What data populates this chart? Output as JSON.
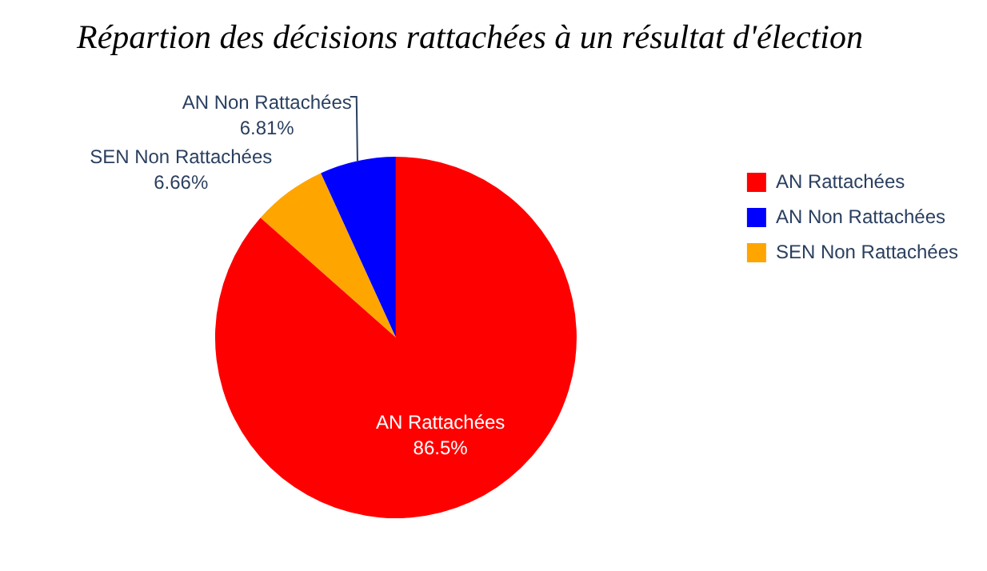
{
  "chart_data": {
    "type": "pie",
    "title": "Répartion des décisions rattachées à un résultat d'élection",
    "categories": [
      "AN Rattachées",
      "AN Non Rattachées",
      "SEN Non Rattachées"
    ],
    "values": [
      86.5,
      6.81,
      6.66
    ],
    "colors": [
      "#ff0000",
      "#0000ff",
      "#ffa500"
    ],
    "value_labels": [
      "86.5%",
      "6.81%",
      "6.66%"
    ],
    "legend": "top right"
  }
}
